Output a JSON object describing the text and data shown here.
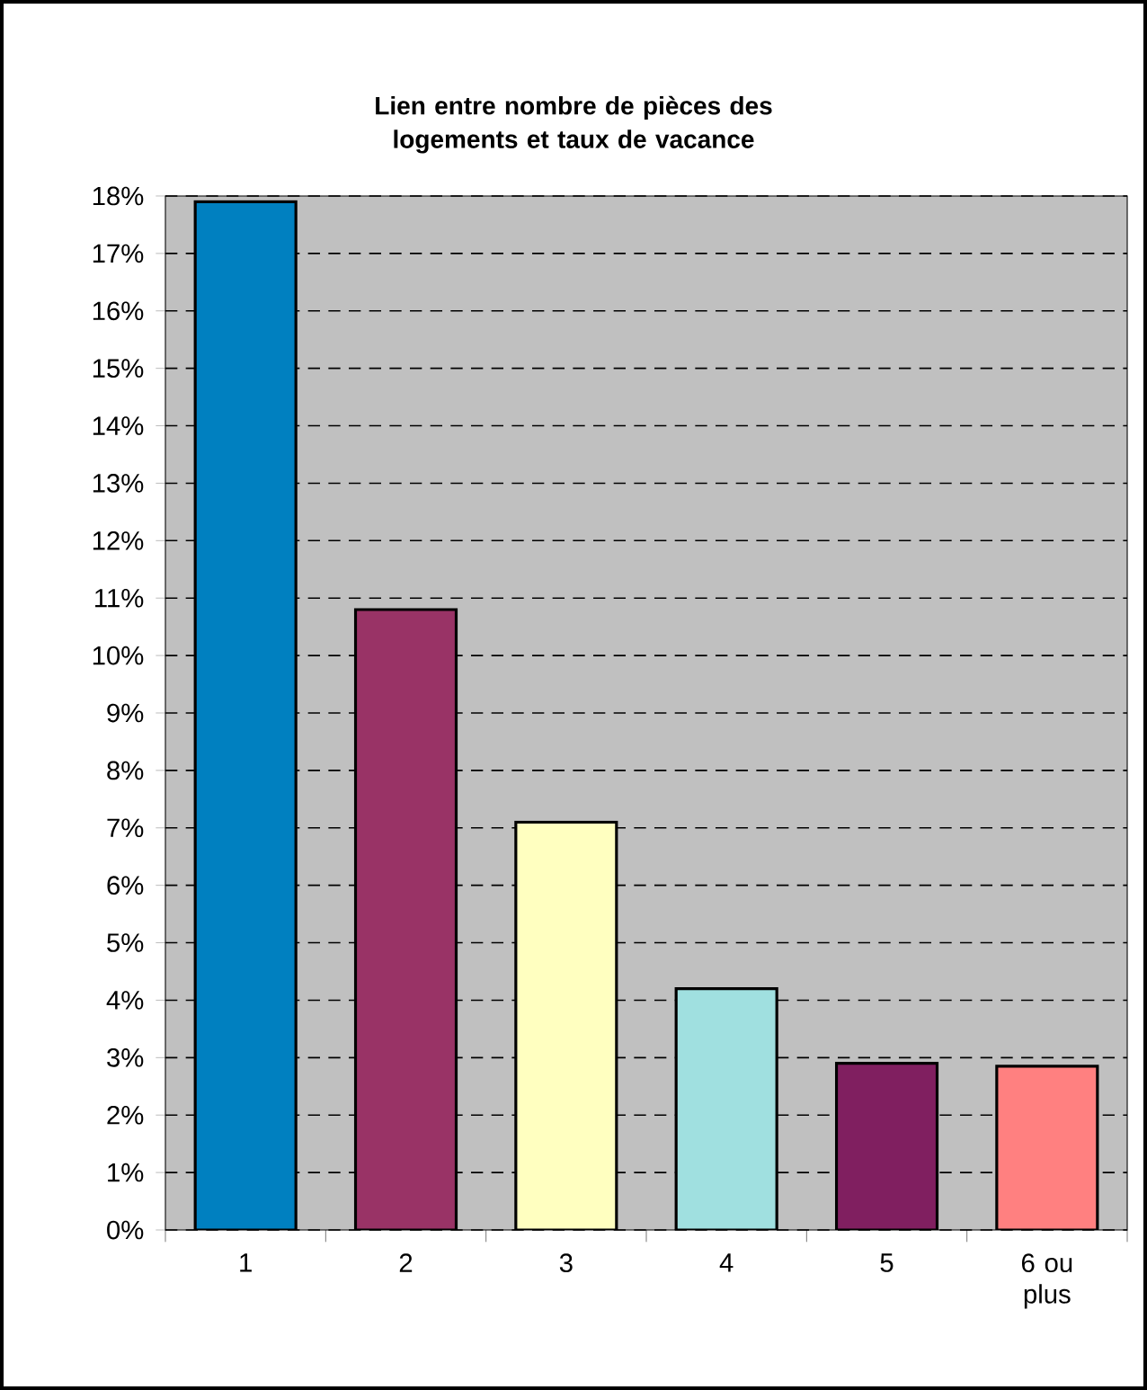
{
  "chart_data": {
    "type": "bar",
    "title": "Lien entre nombre de pièces des logements et taux de vacance",
    "categories": [
      "1",
      "2",
      "3",
      "4",
      "5",
      "6 ou plus"
    ],
    "values": [
      17.9,
      10.8,
      7.1,
      4.2,
      2.9,
      2.85
    ],
    "colors": [
      "#0080c0",
      "#993366",
      "#ffffc0",
      "#a0e0e0",
      "#801f60",
      "#ff8080"
    ],
    "ylim": [
      0,
      18
    ],
    "yticks": [
      {
        "value": 0,
        "label": "0%"
      },
      {
        "value": 1,
        "label": "1%"
      },
      {
        "value": 2,
        "label": "2%"
      },
      {
        "value": 3,
        "label": "3%"
      },
      {
        "value": 4,
        "label": "4%"
      },
      {
        "value": 5,
        "label": "5%"
      },
      {
        "value": 6,
        "label": "6%"
      },
      {
        "value": 7,
        "label": "7%"
      },
      {
        "value": 8,
        "label": "8%"
      },
      {
        "value": 9,
        "label": "9%"
      },
      {
        "value": 10,
        "label": "10%"
      },
      {
        "value": 11,
        "label": "11%"
      },
      {
        "value": 12,
        "label": "12%"
      },
      {
        "value": 13,
        "label": "13%"
      },
      {
        "value": 14,
        "label": "14%"
      },
      {
        "value": 15,
        "label": "15%"
      },
      {
        "value": 16,
        "label": "16%"
      },
      {
        "value": 17,
        "label": "17%"
      },
      {
        "value": 18,
        "label": "18%"
      }
    ],
    "grid": "y"
  }
}
